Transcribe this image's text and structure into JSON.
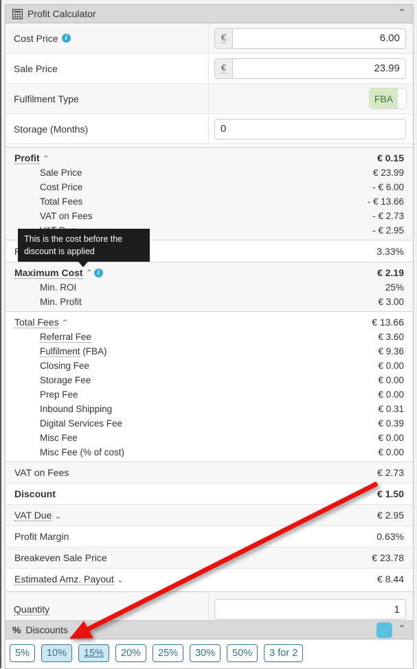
{
  "profit_calculator": {
    "title": "Profit Calculator",
    "inputs": {
      "cost_price": {
        "label": "Cost Price",
        "currency": "€",
        "value": "6.00"
      },
      "sale_price": {
        "label": "Sale Price",
        "currency": "€",
        "value": "23.99"
      },
      "fulfilment_type": {
        "label": "Fulfilment Type",
        "value": "FBA"
      },
      "storage_months": {
        "label": "Storage (Months)",
        "value": "0"
      }
    },
    "summary": {
      "profit": {
        "label": "Profit",
        "value": "€ 0.15",
        "rows": [
          {
            "label": "Sale Price",
            "value": "€ 23.99"
          },
          {
            "label": "Cost Price",
            "value": "- € 6.00"
          },
          {
            "label": "Total Fees",
            "value": "- € 13.66"
          },
          {
            "label": "VAT on Fees",
            "value": "- € 2.73"
          },
          {
            "label": "VAT Due",
            "value": "- € 2.95"
          }
        ]
      },
      "roi": {
        "label": "ROI",
        "value": "3.33%"
      },
      "maximum_cost": {
        "label": "Maximum Cost",
        "value": "€ 2.19",
        "rows": [
          {
            "label": "Min. ROI",
            "value": "25%"
          },
          {
            "label": "Min. Profit",
            "value": "€ 3.00"
          }
        ]
      },
      "total_fees": {
        "label": "Total Fees",
        "value": "€ 13.66",
        "rows": [
          {
            "label": "Referral Fee",
            "value": "€ 3.60",
            "linked": true
          },
          {
            "label": "Fulfilment",
            "label_suffix": " (FBA)",
            "value": "€ 9.36",
            "linked": true
          },
          {
            "label": "Closing Fee",
            "value": "€ 0.00"
          },
          {
            "label": "Storage Fee",
            "value": "€ 0.00"
          },
          {
            "label": "Prep Fee",
            "value": "€ 0.00"
          },
          {
            "label": "Inbound Shipping",
            "value": "€ 0.31"
          },
          {
            "label": "Digital Services Fee",
            "value": "€ 0.39"
          },
          {
            "label": "Misc Fee",
            "value": "€ 0.00"
          },
          {
            "label": "Misc Fee (% of cost)",
            "value": "€ 0.00"
          }
        ]
      },
      "vat_on_fees": {
        "label": "VAT on Fees",
        "value": "€ 2.73"
      },
      "discount": {
        "label": "Discount",
        "value": "€ 1.50"
      },
      "vat_due": {
        "label": "VAT Due",
        "value": "€ 2.95"
      },
      "profit_margin": {
        "label": "Profit Margin",
        "value": "0.63%"
      },
      "breakeven": {
        "label": "Breakeven Sale Price",
        "value": "€ 23.78"
      },
      "estimated_payout": {
        "label": "Estimated Amz. Payout",
        "value": "€ 8.44"
      }
    },
    "quantity": {
      "label": "Quantity",
      "value": "1"
    }
  },
  "tooltip": {
    "text": "This is the cost before the discount is applied"
  },
  "discounts": {
    "title": "Discounts",
    "toggle_color": "#5bc0de",
    "buttons": [
      {
        "label": "5%",
        "active": false
      },
      {
        "label": "10%",
        "active": true
      },
      {
        "label": "15%",
        "active": true,
        "underline": true
      },
      {
        "label": "20%",
        "active": false
      },
      {
        "label": "25%",
        "active": false
      },
      {
        "label": "30%",
        "active": false
      },
      {
        "label": "50%",
        "active": false
      },
      {
        "label": "3 for 2",
        "active": false
      }
    ]
  },
  "annotation": {
    "arrow_color": "#e8120e"
  }
}
